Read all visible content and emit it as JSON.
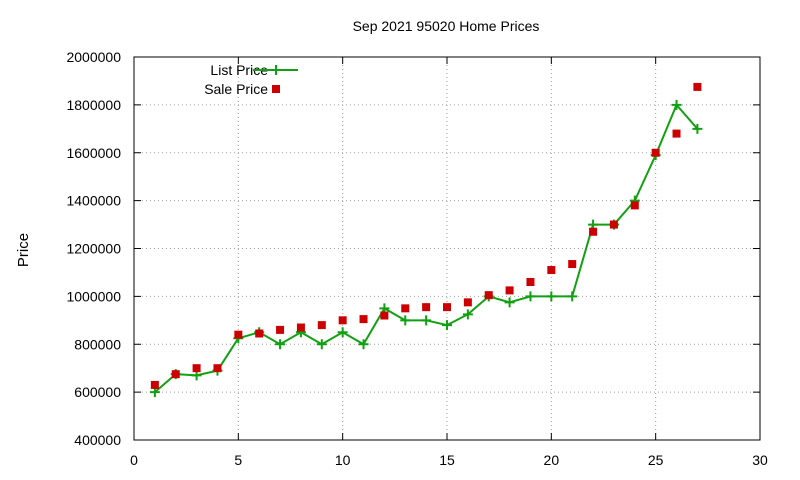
{
  "chart_data": {
    "type": "line",
    "title": "Sep 2021 95020 Home Prices",
    "xlabel": "",
    "ylabel": "Price",
    "xlim": [
      0,
      30
    ],
    "ylim": [
      400000,
      2000000
    ],
    "xticks": [
      0,
      5,
      10,
      15,
      20,
      25,
      30
    ],
    "yticks": [
      400000,
      600000,
      800000,
      1000000,
      1200000,
      1400000,
      1600000,
      1800000,
      2000000
    ],
    "grid": true,
    "legend_position": "top-left",
    "series": [
      {
        "name": "List Price",
        "style": "line-with-plus-markers",
        "color": "#11a011",
        "x": [
          1,
          2,
          3,
          4,
          5,
          6,
          7,
          8,
          9,
          10,
          11,
          12,
          13,
          14,
          15,
          16,
          17,
          18,
          19,
          20,
          21,
          22,
          23,
          24,
          25,
          26,
          27
        ],
        "y": [
          600000,
          675000,
          670000,
          690000,
          825000,
          850000,
          800000,
          850000,
          800000,
          850000,
          800000,
          950000,
          900000,
          900000,
          880000,
          925000,
          1000000,
          975000,
          1000000,
          1000000,
          1000000,
          1300000,
          1300000,
          1400000,
          1590000,
          1800000,
          1700000
        ]
      },
      {
        "name": "Sale Price",
        "style": "square-markers",
        "color": "#cc0000",
        "x": [
          1,
          2,
          3,
          4,
          5,
          6,
          7,
          8,
          9,
          10,
          11,
          12,
          13,
          14,
          15,
          16,
          17,
          18,
          19,
          20,
          21,
          22,
          23,
          24,
          25,
          26,
          27
        ],
        "y": [
          630000,
          675000,
          700000,
          700000,
          840000,
          845000,
          860000,
          870000,
          880000,
          900000,
          905000,
          920000,
          950000,
          955000,
          955000,
          975000,
          1005000,
          1025000,
          1060000,
          1110000,
          1135000,
          1270000,
          1300000,
          1380000,
          1600000,
          1680000,
          1875000
        ]
      }
    ]
  }
}
